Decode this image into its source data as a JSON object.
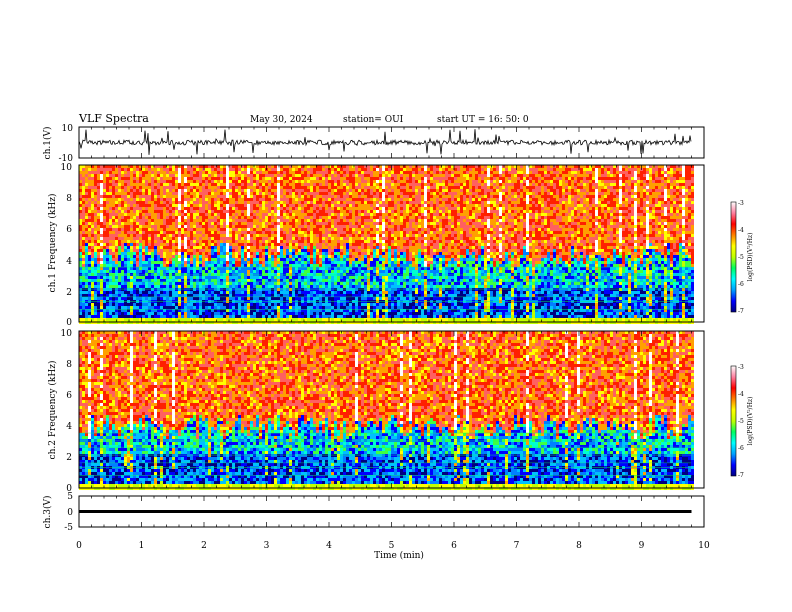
{
  "header": {
    "title": "VLF Spectra",
    "date": "May 30, 2024",
    "station": "station= OUI",
    "start": "start  UT =  16: 50: 0"
  },
  "colors": {
    "scale": [
      "#000080",
      "#0000ff",
      "#0080ff",
      "#00c0ff",
      "#00ffd0",
      "#40ff40",
      "#c0ff00",
      "#ffff00",
      "#ffa000",
      "#ff2000",
      "#ff6060",
      "#ffffff"
    ]
  },
  "chart_data": [
    {
      "type": "line",
      "id": "ch1-waveform",
      "ylabel": "ch.1(V)",
      "ylim": [
        -10,
        10
      ],
      "yticks": [
        "10",
        "-10"
      ],
      "xlim": [
        0,
        10
      ],
      "baseline_value": 0,
      "data_end_min": 9.8
    },
    {
      "type": "heatmap",
      "id": "ch1-spectrogram",
      "ylabel": "ch.1 Frequency (kHz)",
      "ylim": [
        0,
        10
      ],
      "yticks": [
        "0",
        "2",
        "4",
        "6",
        "8",
        "10"
      ],
      "xlim": [
        0,
        10
      ],
      "colorbar": {
        "label": "log(PSD)(V²/Hz)",
        "ticks": [
          "-3",
          "-4",
          "-5",
          "-6",
          "-7"
        ],
        "range": [
          -7,
          -3
        ]
      },
      "high_band_kHz": [
        4.3,
        10
      ],
      "data_end_min": 9.8
    },
    {
      "type": "heatmap",
      "id": "ch2-spectrogram",
      "ylabel": "ch.2 Frequency (kHz)",
      "ylim": [
        0,
        10
      ],
      "yticks": [
        "0",
        "2",
        "4",
        "6",
        "8",
        "10"
      ],
      "xlim": [
        0,
        10
      ],
      "colorbar": {
        "label": "log(PSD)(V²/Hz)",
        "ticks": [
          "-3",
          "-4",
          "-5",
          "-6",
          "-7"
        ],
        "range": [
          -7,
          -3
        ]
      },
      "high_band_kHz": [
        4.0,
        10
      ],
      "data_end_min": 9.8
    },
    {
      "type": "line",
      "id": "ch3-waveform",
      "ylabel": "ch.3(V)",
      "ylim": [
        -5,
        5
      ],
      "yticks": [
        "5",
        "0",
        "-5"
      ],
      "xlim": [
        0,
        10
      ],
      "baseline_value": 0,
      "data_end_min": 9.8
    }
  ],
  "xaxis": {
    "label": "Time  (min)",
    "ticks": [
      "0",
      "1",
      "2",
      "3",
      "4",
      "5",
      "6",
      "7",
      "8",
      "9",
      "10"
    ]
  }
}
